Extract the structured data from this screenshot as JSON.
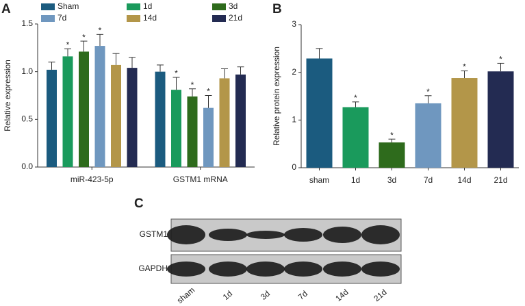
{
  "chart_data": [
    {
      "type": "grouped-bar",
      "label": "A",
      "ylabel": "Relative  expression",
      "categories": [
        "miR-423-5p",
        "GSTM1 mRNA"
      ],
      "series": [
        {
          "name": "Sham",
          "color": "#1b5b7f",
          "values": [
            1.02,
            1.0
          ],
          "errors": [
            0.08,
            0.07
          ]
        },
        {
          "name": "1d",
          "color": "#1a9a5c",
          "values": [
            1.16,
            0.81
          ],
          "errors": [
            0.08,
            0.13
          ]
        },
        {
          "name": "3d",
          "color": "#2e6b1c",
          "values": [
            1.21,
            0.74
          ],
          "errors": [
            0.11,
            0.08
          ]
        },
        {
          "name": "7d",
          "color": "#6f97bf",
          "values": [
            1.27,
            0.62
          ],
          "errors": [
            0.12,
            0.13
          ]
        },
        {
          "name": "14d",
          "color": "#b39649",
          "values": [
            1.07,
            0.93
          ],
          "errors": [
            0.12,
            0.1
          ]
        },
        {
          "name": "21d",
          "color": "#232b52",
          "values": [
            1.04,
            0.97
          ],
          "errors": [
            0.11,
            0.08
          ]
        }
      ],
      "ylim": [
        0,
        1.5
      ],
      "yticks": [
        {
          "value": 0,
          "label": "0.0"
        },
        {
          "value": 0.5,
          "label": "0.5"
        },
        {
          "value": 1,
          "label": "1.0"
        },
        {
          "value": 1.5,
          "label": "1.5"
        }
      ],
      "annotations": [
        {
          "text": "*",
          "series": "1d",
          "category": "miR-423-5p"
        },
        {
          "text": "*",
          "series": "3d",
          "category": "miR-423-5p"
        },
        {
          "text": "*",
          "series": "7d",
          "category": "miR-423-5p"
        },
        {
          "text": "*",
          "series": "1d",
          "category": "GSTM1 mRNA"
        },
        {
          "text": "*",
          "series": "3d",
          "category": "GSTM1 mRNA"
        },
        {
          "text": "*",
          "series": "7d",
          "category": "GSTM1 mRNA"
        }
      ]
    },
    {
      "type": "bar",
      "label": "B",
      "ylabel": "Relative protein expression",
      "categories": [
        "sham",
        "1d",
        "3d",
        "7d",
        "14d",
        "21d"
      ],
      "values": [
        2.29,
        1.27,
        0.53,
        1.35,
        1.88,
        2.02
      ],
      "errors": [
        0.21,
        0.11,
        0.07,
        0.16,
        0.15,
        0.17
      ],
      "colors": [
        "#1b5b7f",
        "#1a9a5c",
        "#2e6b1c",
        "#6f97bf",
        "#b39649",
        "#232b52"
      ],
      "ylim": [
        0,
        3
      ],
      "yticks": [
        0,
        1,
        2,
        3
      ],
      "annotations": [
        {
          "text": "*",
          "category": "1d"
        },
        {
          "text": "*",
          "category": "3d"
        },
        {
          "text": "*",
          "category": "7d"
        },
        {
          "text": "*",
          "category": "14d"
        },
        {
          "text": "*",
          "category": "21d"
        }
      ]
    }
  ],
  "blot": {
    "label": "C",
    "rows": [
      "GSTM1",
      "GAPDH"
    ],
    "lanes": [
      "sham",
      "1d",
      "3d",
      "7d",
      "14d",
      "21d"
    ]
  }
}
